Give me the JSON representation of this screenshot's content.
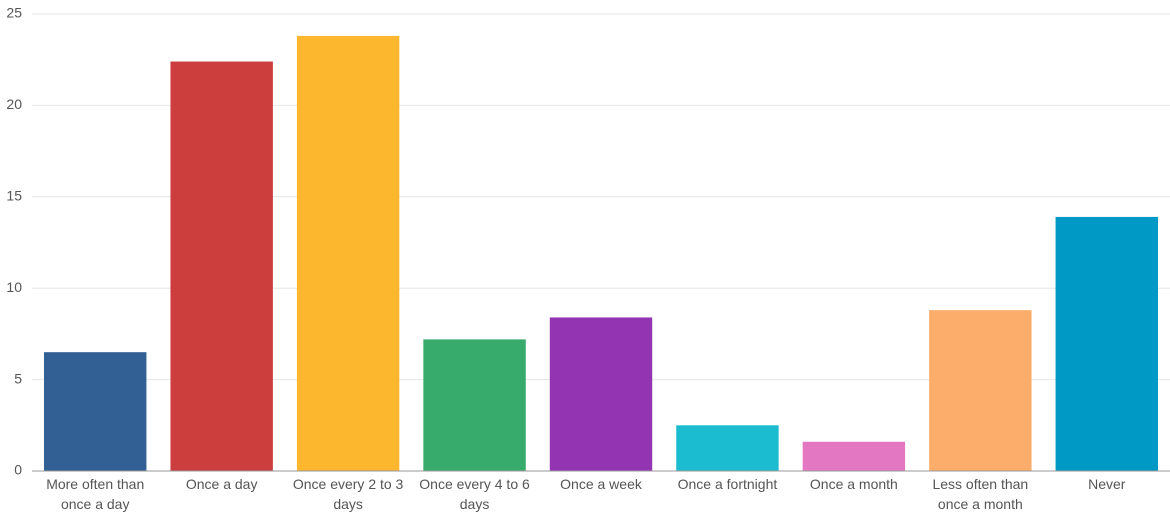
{
  "chart_data": {
    "type": "bar",
    "categories": [
      "More often than once a day",
      "Once a day",
      "Once every 2 to 3 days",
      "Once every 4 to 6 days",
      "Once a week",
      "Once a fortnight",
      "Once a month",
      "Less often than once a month",
      "Never"
    ],
    "values": [
      6.5,
      22.4,
      23.8,
      7.2,
      8.4,
      2.5,
      1.6,
      8.8,
      13.9
    ],
    "colors": [
      "#336094",
      "#cc3d3d",
      "#fcb72e",
      "#36ab6b",
      "#9334b3",
      "#1bbccf",
      "#e377c2",
      "#fcad6b",
      "#0099c6"
    ],
    "ylim": [
      0,
      25
    ],
    "yticks": [
      0,
      5,
      10,
      15,
      20,
      25
    ],
    "grid": true
  }
}
